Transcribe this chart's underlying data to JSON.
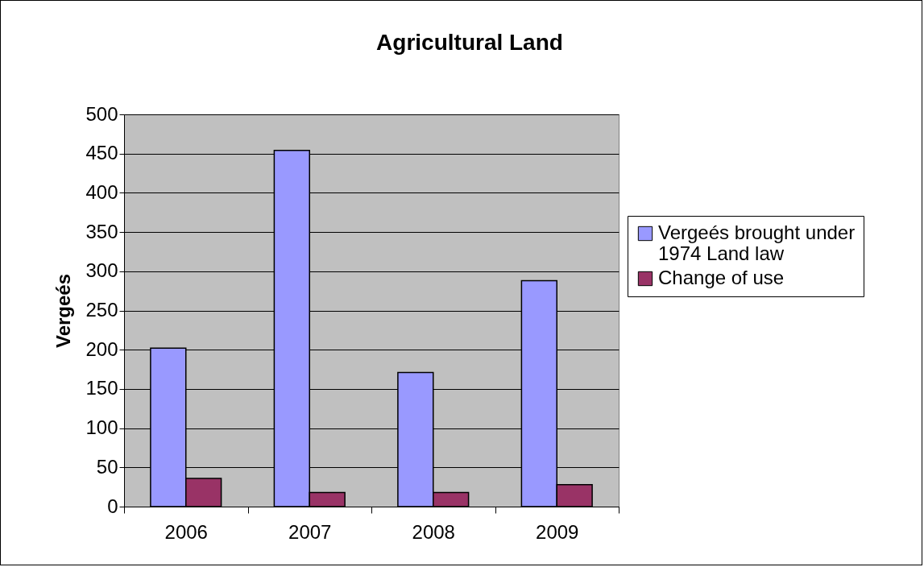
{
  "chart_data": {
    "type": "bar",
    "title": "Agricultural Land",
    "ylabel": "Vergeés",
    "categories": [
      "2006",
      "2007",
      "2008",
      "2009"
    ],
    "series": [
      {
        "name": "Vergeés brought under 1974 Land law",
        "color": "#9999ff",
        "values": [
          202,
          454,
          171,
          288
        ]
      },
      {
        "name": "Change of use",
        "color": "#993366",
        "values": [
          36,
          18,
          18,
          28
        ]
      }
    ],
    "ylim": [
      0,
      500
    ],
    "yticks": [
      0,
      50,
      100,
      150,
      200,
      250,
      300,
      350,
      400,
      450,
      500
    ],
    "grid": "y",
    "legend": "right"
  }
}
